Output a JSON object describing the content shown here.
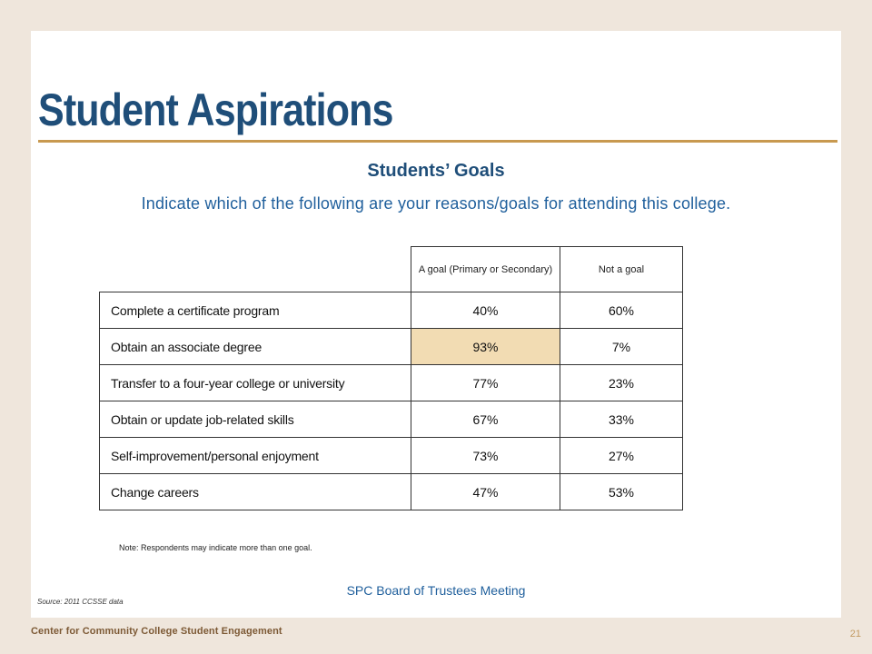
{
  "slide": {
    "title": "Student Aspirations",
    "subtitle": "Students’ Goals",
    "question": "Indicate which of the following are your reasons/goals for attending this college."
  },
  "table": {
    "headers": [
      "A goal (Primary or Secondary)",
      "Not a goal"
    ],
    "rows": [
      {
        "label": "Complete a certificate program",
        "goal": "40%",
        "not_goal": "60%"
      },
      {
        "label": "Obtain an associate degree",
        "goal": "93%",
        "not_goal": "7%"
      },
      {
        "label": "Transfer to a four-year college or university",
        "goal": "77%",
        "not_goal": "23%"
      },
      {
        "label": "Obtain or update job-related skills",
        "goal": "67%",
        "not_goal": "33%"
      },
      {
        "label": "Self-improvement/personal enjoyment",
        "goal": "73%",
        "not_goal": "27%"
      },
      {
        "label": "Change careers",
        "goal": "47%",
        "not_goal": "53%"
      }
    ],
    "highlight_color": "#f2dcb3"
  },
  "note": "Note: Respondents may indicate more than one goal.",
  "meeting": "SPC Board of Trustees Meeting",
  "source": "Source: 2011 CCSSE data",
  "footer": {
    "organization": "Center for Community College Student Engagement",
    "page_number": "21"
  }
}
